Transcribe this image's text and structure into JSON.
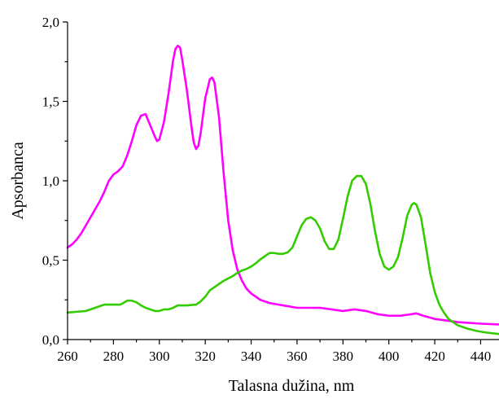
{
  "chart_data": {
    "type": "line",
    "xlabel": "Talasna dužina, nm",
    "ylabel": "Apsorbanca",
    "xlim": [
      260,
      448
    ],
    "ylim": [
      0,
      2.0
    ],
    "xticks": [
      260,
      280,
      300,
      320,
      340,
      360,
      380,
      400,
      420,
      440
    ],
    "xtick_labels": [
      "260",
      "280",
      "300",
      "320",
      "340",
      "360",
      "380",
      "400",
      "420",
      "440"
    ],
    "yticks": [
      0,
      0.5,
      1.0,
      1.5,
      2.0
    ],
    "ytick_labels": [
      "0,0",
      "0,5",
      "1,0",
      "1,5",
      "2,0"
    ],
    "grid": false,
    "series": [
      {
        "color": "#ff00ff",
        "points": [
          [
            260,
            0.58
          ],
          [
            262,
            0.6
          ],
          [
            264,
            0.63
          ],
          [
            266,
            0.67
          ],
          [
            268,
            0.72
          ],
          [
            270,
            0.77
          ],
          [
            272,
            0.82
          ],
          [
            274,
            0.87
          ],
          [
            276,
            0.93
          ],
          [
            278,
            1.0
          ],
          [
            280,
            1.04
          ],
          [
            282,
            1.06
          ],
          [
            284,
            1.09
          ],
          [
            286,
            1.16
          ],
          [
            288,
            1.25
          ],
          [
            290,
            1.35
          ],
          [
            292,
            1.41
          ],
          [
            294,
            1.42
          ],
          [
            296,
            1.35
          ],
          [
            298,
            1.28
          ],
          [
            299,
            1.25
          ],
          [
            300,
            1.26
          ],
          [
            302,
            1.37
          ],
          [
            304,
            1.55
          ],
          [
            306,
            1.76
          ],
          [
            307,
            1.83
          ],
          [
            308,
            1.85
          ],
          [
            309,
            1.84
          ],
          [
            310,
            1.76
          ],
          [
            312,
            1.57
          ],
          [
            314,
            1.34
          ],
          [
            315,
            1.24
          ],
          [
            316,
            1.2
          ],
          [
            317,
            1.22
          ],
          [
            318,
            1.3
          ],
          [
            320,
            1.52
          ],
          [
            322,
            1.64
          ],
          [
            323,
            1.65
          ],
          [
            324,
            1.62
          ],
          [
            326,
            1.4
          ],
          [
            328,
            1.05
          ],
          [
            330,
            0.75
          ],
          [
            332,
            0.56
          ],
          [
            334,
            0.44
          ],
          [
            336,
            0.37
          ],
          [
            338,
            0.32
          ],
          [
            340,
            0.29
          ],
          [
            342,
            0.27
          ],
          [
            344,
            0.25
          ],
          [
            348,
            0.23
          ],
          [
            352,
            0.22
          ],
          [
            356,
            0.21
          ],
          [
            360,
            0.2
          ],
          [
            365,
            0.2
          ],
          [
            370,
            0.2
          ],
          [
            375,
            0.19
          ],
          [
            380,
            0.18
          ],
          [
            385,
            0.19
          ],
          [
            390,
            0.18
          ],
          [
            395,
            0.16
          ],
          [
            400,
            0.15
          ],
          [
            405,
            0.15
          ],
          [
            410,
            0.16
          ],
          [
            412,
            0.165
          ],
          [
            415,
            0.15
          ],
          [
            420,
            0.13
          ],
          [
            425,
            0.12
          ],
          [
            430,
            0.11
          ],
          [
            440,
            0.1
          ],
          [
            448,
            0.095
          ]
        ]
      },
      {
        "color": "#33cc00",
        "points": [
          [
            260,
            0.17
          ],
          [
            264,
            0.175
          ],
          [
            268,
            0.18
          ],
          [
            272,
            0.2
          ],
          [
            276,
            0.22
          ],
          [
            280,
            0.22
          ],
          [
            283,
            0.22
          ],
          [
            286,
            0.245
          ],
          [
            288,
            0.245
          ],
          [
            290,
            0.235
          ],
          [
            292,
            0.215
          ],
          [
            294,
            0.2
          ],
          [
            296,
            0.19
          ],
          [
            298,
            0.18
          ],
          [
            300,
            0.18
          ],
          [
            302,
            0.19
          ],
          [
            304,
            0.19
          ],
          [
            306,
            0.2
          ],
          [
            308,
            0.215
          ],
          [
            312,
            0.215
          ],
          [
            316,
            0.22
          ],
          [
            318,
            0.24
          ],
          [
            320,
            0.27
          ],
          [
            322,
            0.31
          ],
          [
            324,
            0.33
          ],
          [
            326,
            0.35
          ],
          [
            328,
            0.37
          ],
          [
            330,
            0.385
          ],
          [
            332,
            0.4
          ],
          [
            334,
            0.42
          ],
          [
            336,
            0.435
          ],
          [
            338,
            0.445
          ],
          [
            340,
            0.46
          ],
          [
            342,
            0.48
          ],
          [
            344,
            0.505
          ],
          [
            346,
            0.525
          ],
          [
            348,
            0.545
          ],
          [
            350,
            0.545
          ],
          [
            352,
            0.54
          ],
          [
            354,
            0.54
          ],
          [
            356,
            0.55
          ],
          [
            358,
            0.58
          ],
          [
            360,
            0.65
          ],
          [
            362,
            0.72
          ],
          [
            364,
            0.76
          ],
          [
            366,
            0.77
          ],
          [
            368,
            0.75
          ],
          [
            370,
            0.7
          ],
          [
            372,
            0.62
          ],
          [
            374,
            0.57
          ],
          [
            376,
            0.57
          ],
          [
            378,
            0.63
          ],
          [
            380,
            0.76
          ],
          [
            382,
            0.9
          ],
          [
            384,
            1.0
          ],
          [
            386,
            1.03
          ],
          [
            388,
            1.03
          ],
          [
            390,
            0.98
          ],
          [
            392,
            0.85
          ],
          [
            394,
            0.68
          ],
          [
            396,
            0.54
          ],
          [
            398,
            0.46
          ],
          [
            400,
            0.44
          ],
          [
            402,
            0.46
          ],
          [
            404,
            0.52
          ],
          [
            406,
            0.64
          ],
          [
            408,
            0.78
          ],
          [
            410,
            0.85
          ],
          [
            411,
            0.86
          ],
          [
            412,
            0.85
          ],
          [
            414,
            0.77
          ],
          [
            416,
            0.6
          ],
          [
            418,
            0.42
          ],
          [
            420,
            0.3
          ],
          [
            422,
            0.22
          ],
          [
            424,
            0.17
          ],
          [
            426,
            0.13
          ],
          [
            428,
            0.11
          ],
          [
            430,
            0.09
          ],
          [
            434,
            0.07
          ],
          [
            438,
            0.055
          ],
          [
            442,
            0.045
          ],
          [
            448,
            0.035
          ]
        ]
      }
    ]
  }
}
